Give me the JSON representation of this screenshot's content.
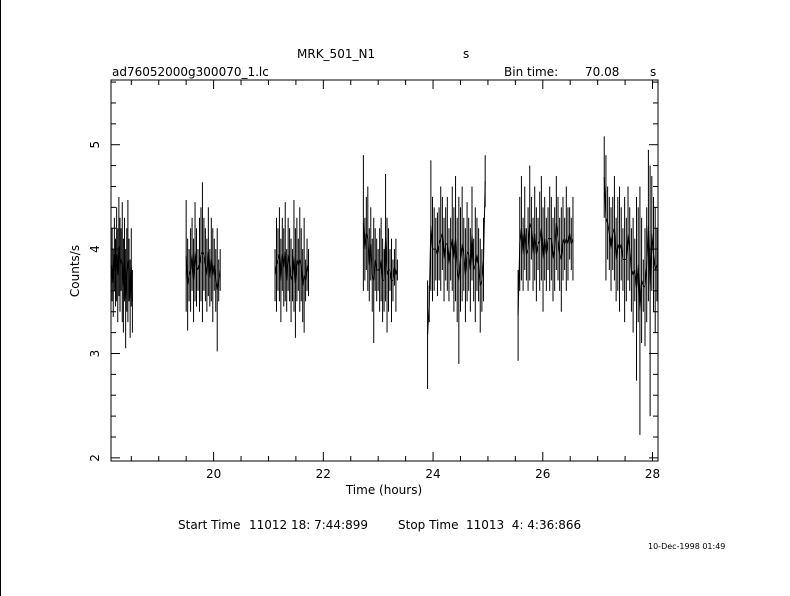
{
  "header": {
    "object": "MRK_501_N1",
    "object_unit": "s",
    "filename": "ad76052000g300070_1.lc",
    "bin_label": "Bin time:",
    "bin_value": "70.08",
    "bin_unit": "s"
  },
  "footer": {
    "start_label": "Start Time",
    "start_value": "11012 18: 7:44:899",
    "stop_label": "Stop Time",
    "stop_value": "11013  4: 4:36:866",
    "stamp": "10-Dec-1998 01:49"
  },
  "chart_data": {
    "type": "line",
    "xlabel": "Time (hours)",
    "ylabel": "Counts/s",
    "xlim": [
      18.13,
      28.1
    ],
    "ylim": [
      1.97,
      5.62
    ],
    "xticks": [
      20,
      22,
      24,
      26,
      28
    ],
    "yticks": [
      2,
      3,
      4,
      5
    ],
    "grid": false,
    "segments": [
      {
        "x_start": 18.13,
        "x_end": 18.52,
        "max": [
          3.9,
          4.2,
          4.0,
          4.3,
          4.1,
          4.4,
          4.2,
          4.5,
          4.3,
          4.2,
          4.45,
          4.1,
          4.3,
          4.0,
          4.2,
          4.47,
          4.1,
          3.9,
          4.2,
          3.8
        ],
        "min": [
          3.4,
          3.5,
          3.35,
          3.6,
          3.45,
          3.5,
          3.3,
          3.55,
          3.4,
          3.6,
          3.3,
          3.2,
          3.5,
          3.05,
          3.4,
          3.3,
          3.5,
          3.15,
          3.45,
          3.2
        ]
      },
      {
        "x_start": 19.5,
        "x_end": 20.12,
        "max": [
          4.47,
          4.1,
          4.0,
          4.2,
          4.3,
          4.1,
          4.45,
          4.2,
          4.0,
          4.3,
          4.4,
          4.64,
          4.3,
          4.2,
          4.1,
          4.4,
          4.0,
          4.3,
          4.2,
          4.1,
          4.0,
          4.2,
          3.9,
          4.0
        ],
        "min": [
          3.4,
          3.22,
          3.5,
          3.4,
          3.6,
          3.3,
          3.5,
          3.45,
          3.6,
          3.4,
          3.5,
          3.3,
          3.6,
          3.5,
          3.4,
          3.55,
          3.45,
          3.5,
          3.3,
          3.6,
          3.4,
          3.02,
          3.5,
          3.6
        ]
      },
      {
        "x_start": 21.12,
        "x_end": 21.73,
        "max": [
          4.0,
          4.3,
          4.2,
          4.4,
          4.1,
          4.3,
          4.2,
          4.45,
          4.0,
          4.3,
          4.2,
          4.1,
          4.0,
          4.47,
          4.2,
          4.3,
          4.1,
          4.4,
          4.2,
          4.0,
          4.3,
          3.9,
          4.1,
          4.0
        ],
        "min": [
          3.5,
          3.4,
          3.6,
          3.5,
          3.3,
          3.6,
          3.45,
          3.5,
          3.4,
          3.6,
          3.5,
          3.3,
          3.5,
          3.4,
          3.15,
          3.5,
          3.6,
          3.4,
          3.5,
          3.3,
          3.2,
          3.5,
          3.6,
          3.55
        ]
      },
      {
        "x_start": 22.73,
        "x_end": 23.35,
        "max": [
          4.9,
          4.3,
          4.5,
          4.6,
          4.2,
          4.4,
          4.1,
          4.3,
          4.2,
          4.1,
          4.0,
          4.2,
          4.3,
          4.1,
          4.0,
          4.72,
          4.3,
          4.2,
          4.0,
          4.1,
          3.9,
          4.0,
          4.1,
          3.9
        ],
        "min": [
          3.6,
          3.7,
          3.8,
          3.6,
          3.5,
          3.7,
          3.4,
          3.1,
          3.6,
          3.5,
          3.6,
          3.4,
          3.5,
          3.3,
          3.4,
          3.5,
          3.2,
          3.4,
          3.6,
          3.3,
          3.5,
          3.65,
          3.4,
          3.7
        ]
      },
      {
        "x_start": 23.9,
        "x_end": 24.95,
        "max": [
          3.7,
          3.65,
          4.85,
          4.5,
          4.4,
          4.3,
          4.35,
          4.4,
          4.6,
          4.5,
          4.3,
          4.4,
          4.5,
          4.2,
          4.3,
          4.6,
          4.4,
          4.7,
          4.3,
          4.5,
          4.4,
          4.6,
          4.3,
          4.2,
          4.45,
          4.3,
          4.2,
          4.6,
          4.1,
          4.4,
          4.3,
          4.2,
          4.1,
          4.0,
          4.3,
          4.9
        ],
        "min": [
          2.66,
          3.3,
          3.6,
          3.5,
          3.6,
          3.7,
          3.55,
          3.7,
          3.6,
          3.8,
          3.5,
          3.7,
          3.6,
          3.5,
          3.7,
          3.6,
          3.4,
          3.5,
          3.3,
          2.9,
          3.4,
          3.5,
          3.6,
          3.3,
          3.5,
          3.6,
          3.4,
          3.7,
          3.5,
          3.3,
          3.6,
          3.5,
          3.2,
          3.4,
          3.5,
          4.4
        ]
      },
      {
        "x_start": 25.55,
        "x_end": 26.55,
        "max": [
          3.8,
          4.5,
          4.7,
          4.3,
          4.6,
          4.2,
          4.4,
          4.8,
          4.5,
          4.3,
          4.6,
          4.4,
          4.3,
          4.55,
          4.7,
          4.4,
          4.5,
          4.3,
          4.4,
          4.6,
          4.5,
          4.3,
          4.4,
          4.7,
          4.5,
          4.3,
          4.4,
          4.5,
          4.3,
          4.6,
          4.4,
          4.4,
          4.3,
          4.5
        ],
        "min": [
          2.93,
          3.6,
          3.7,
          3.6,
          3.8,
          3.7,
          3.6,
          3.7,
          3.9,
          3.6,
          3.7,
          3.5,
          3.8,
          3.6,
          3.7,
          3.4,
          3.7,
          3.6,
          3.8,
          3.6,
          3.7,
          3.5,
          3.6,
          3.8,
          3.7,
          3.6,
          3.4,
          3.7,
          3.8,
          3.6,
          3.7,
          3.9,
          3.8,
          3.7
        ]
      },
      {
        "x_start": 27.12,
        "x_end": 28.08,
        "max": [
          5.08,
          4.9,
          4.6,
          4.5,
          4.4,
          4.5,
          4.7,
          4.3,
          4.5,
          4.6,
          4.4,
          4.2,
          4.5,
          4.3,
          4.6,
          4.4,
          4.2,
          4.3,
          4.1,
          4.5,
          4.4,
          4.6,
          4.3,
          3.9,
          4.2,
          4.4,
          4.95,
          4.8,
          4.7,
          4.5,
          4.4,
          4.2
        ],
        "min": [
          4.3,
          3.7,
          3.9,
          3.8,
          3.6,
          3.8,
          3.7,
          3.5,
          3.6,
          3.4,
          3.7,
          3.6,
          3.3,
          3.5,
          3.7,
          3.6,
          3.4,
          3.2,
          3.5,
          2.74,
          3.3,
          2.22,
          3.1,
          3.4,
          3.07,
          3.3,
          3.5,
          2.4,
          3.6,
          3.4,
          3.2,
          3.5
        ]
      }
    ]
  }
}
